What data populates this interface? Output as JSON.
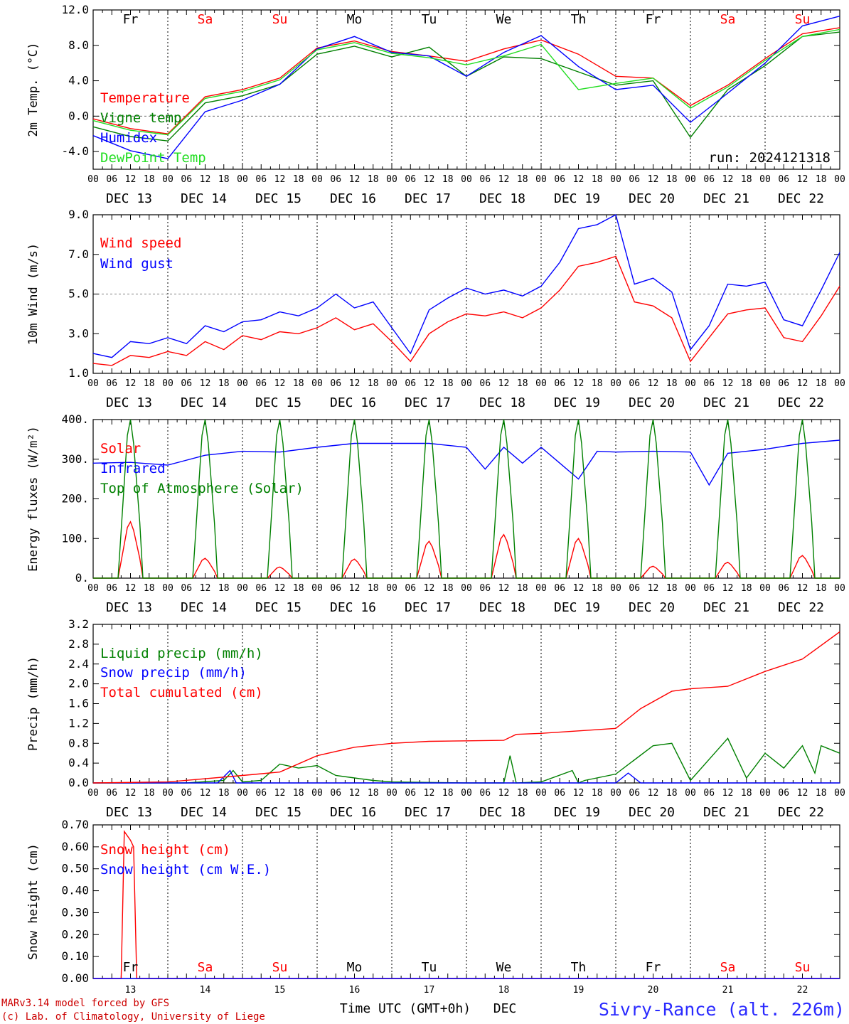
{
  "colors": {
    "red": "#ff0000",
    "green": "#008000",
    "blue": "#0000ff",
    "lightgreen": "#22dd22",
    "weekend": "#ff0000",
    "weekday": "#000000"
  },
  "day_labels": [
    "DEC 13",
    "DEC 14",
    "DEC 15",
    "DEC 16",
    "DEC 17",
    "DEC 18",
    "DEC 19",
    "DEC 20",
    "DEC 21",
    "DEC 22"
  ],
  "hour_labels": [
    "00",
    "06",
    "12",
    "18"
  ],
  "hour_end": "00",
  "weekdays": [
    {
      "label": "Fr",
      "weekend": false
    },
    {
      "label": "Sa",
      "weekend": true
    },
    {
      "label": "Su",
      "weekend": true
    },
    {
      "label": "Mo",
      "weekend": false
    },
    {
      "label": "Tu",
      "weekend": false
    },
    {
      "label": "We",
      "weekend": false
    },
    {
      "label": "Th",
      "weekend": false
    },
    {
      "label": "Fr",
      "weekend": false
    },
    {
      "label": "Sa",
      "weekend": true
    },
    {
      "label": "Su",
      "weekend": true
    }
  ],
  "bottom_day_numbers": [
    "13",
    "14",
    "15",
    "16",
    "17",
    "18",
    "19",
    "20",
    "21",
    "22"
  ],
  "footer": {
    "model": "MARv3.14 model forced by GFS",
    "lab": "(c) Lab. of Climatology, University of Liege",
    "xlabel": "Time UTC (GMT+0h)",
    "month": "DEC",
    "station": "Sivry-Rance (alt. 226m)"
  },
  "chart_data": [
    {
      "type": "line",
      "ylabel": "2m Temp. (°C)",
      "ylim": [
        -6,
        12
      ],
      "yticks": [
        "12.0",
        "8.0",
        "4.0",
        "0.0",
        "-4.0"
      ],
      "ytick_values": [
        12,
        8,
        4,
        0,
        -4
      ],
      "hline": [
        0
      ],
      "x_hours_range": [
        0,
        240
      ],
      "annotation": "run: 2024121318",
      "series": [
        {
          "name": "Temperature",
          "color": "red",
          "x": [
            0,
            12,
            24,
            36,
            48,
            60,
            72,
            84,
            96,
            108,
            120,
            132,
            144,
            156,
            168,
            180,
            192,
            204,
            216,
            228,
            240
          ],
          "y": [
            -0.3,
            -1.4,
            -2.0,
            2.2,
            3.0,
            4.3,
            7.7,
            8.5,
            7.3,
            6.8,
            6.2,
            7.6,
            8.6,
            7.0,
            4.5,
            4.3,
            1.2,
            3.5,
            6.5,
            9.3,
            10.0
          ]
        },
        {
          "name": "Vigne temp",
          "color": "green",
          "x": [
            0,
            12,
            24,
            36,
            48,
            60,
            72,
            84,
            96,
            108,
            120,
            132,
            144,
            156,
            168,
            180,
            192,
            204,
            216,
            228,
            240
          ],
          "y": [
            -1.2,
            -2.3,
            -2.8,
            1.5,
            2.3,
            3.6,
            7.0,
            7.9,
            6.7,
            7.8,
            4.5,
            6.7,
            6.5,
            5.0,
            3.5,
            4.0,
            -2.4,
            3.0,
            5.7,
            9.0,
            9.5
          ]
        },
        {
          "name": "Humidex",
          "color": "blue",
          "x": [
            0,
            12,
            24,
            36,
            48,
            60,
            72,
            84,
            96,
            108,
            120,
            132,
            144,
            156,
            168,
            180,
            192,
            204,
            216,
            228,
            240
          ],
          "y": [
            -2.2,
            -3.9,
            -4.8,
            0.5,
            1.8,
            3.6,
            7.6,
            9.0,
            7.2,
            6.8,
            4.5,
            7.2,
            9.1,
            5.6,
            3.0,
            3.5,
            -0.7,
            2.6,
            6.0,
            10.2,
            11.3
          ]
        },
        {
          "name": "DewPoint Temp",
          "color": "lightgreen",
          "x": [
            0,
            12,
            24,
            36,
            48,
            60,
            72,
            84,
            96,
            108,
            120,
            132,
            144,
            156,
            168,
            180,
            192,
            204,
            216,
            228,
            240
          ],
          "y": [
            -0.5,
            -1.6,
            -2.1,
            2.0,
            2.8,
            4.1,
            7.5,
            8.3,
            7.1,
            6.6,
            5.8,
            6.8,
            8.1,
            3.0,
            3.7,
            4.3,
            0.9,
            3.3,
            6.3,
            9.0,
            9.8
          ]
        }
      ]
    },
    {
      "type": "line",
      "ylabel": "10m Wind (m/s)",
      "ylim": [
        1,
        9
      ],
      "yticks": [
        "9.0",
        "7.0",
        "5.0",
        "3.0",
        "1.0"
      ],
      "ytick_values": [
        9,
        7,
        5,
        3,
        1
      ],
      "hline": [
        5
      ],
      "x_hours_range": [
        0,
        240
      ],
      "series": [
        {
          "name": "Wind speed",
          "color": "red",
          "x": [
            0,
            6,
            12,
            18,
            24,
            30,
            36,
            42,
            48,
            54,
            60,
            66,
            72,
            78,
            84,
            90,
            96,
            102,
            108,
            114,
            120,
            126,
            132,
            138,
            144,
            150,
            156,
            162,
            168,
            174,
            180,
            186,
            192,
            198,
            204,
            210,
            216,
            222,
            228,
            234,
            240
          ],
          "y": [
            1.5,
            1.4,
            1.9,
            1.8,
            2.1,
            1.9,
            2.6,
            2.2,
            2.9,
            2.7,
            3.1,
            3.0,
            3.3,
            3.8,
            3.2,
            3.5,
            2.6,
            1.6,
            3.0,
            3.6,
            4.0,
            3.9,
            4.1,
            3.8,
            4.3,
            5.2,
            6.4,
            6.6,
            6.9,
            4.6,
            4.4,
            3.8,
            1.6,
            2.8,
            4.0,
            4.2,
            4.3,
            2.8,
            2.6,
            3.9,
            5.4
          ]
        },
        {
          "name": "Wind gust",
          "color": "blue",
          "x": [
            0,
            6,
            12,
            18,
            24,
            30,
            36,
            42,
            48,
            54,
            60,
            66,
            72,
            78,
            84,
            90,
            96,
            102,
            108,
            114,
            120,
            126,
            132,
            138,
            144,
            150,
            156,
            162,
            168,
            174,
            180,
            186,
            192,
            198,
            204,
            210,
            216,
            222,
            228,
            234,
            240
          ],
          "y": [
            2.0,
            1.8,
            2.6,
            2.5,
            2.8,
            2.5,
            3.4,
            3.1,
            3.6,
            3.7,
            4.1,
            3.9,
            4.3,
            5.0,
            4.3,
            4.6,
            3.3,
            2.0,
            4.2,
            4.8,
            5.3,
            5.0,
            5.2,
            4.9,
            5.4,
            6.6,
            8.3,
            8.5,
            9.0,
            5.5,
            5.8,
            5.1,
            2.2,
            3.4,
            5.5,
            5.4,
            5.6,
            3.7,
            3.4,
            5.2,
            7.1
          ]
        }
      ]
    },
    {
      "type": "line",
      "ylabel": "Energy fluxes (W/m²)",
      "ylim": [
        0,
        400
      ],
      "yticks": [
        "400.",
        "300.",
        "200.",
        "100.",
        "0."
      ],
      "ytick_values": [
        400,
        300,
        200,
        100,
        0
      ],
      "x_hours_range": [
        0,
        240
      ],
      "series": [
        {
          "name": "Solar",
          "color": "red",
          "peaks": [
            142,
            50,
            28,
            48,
            93,
            110,
            100,
            30,
            40,
            57
          ]
        },
        {
          "name": "Infrared",
          "color": "blue",
          "x": [
            0,
            12,
            24,
            36,
            48,
            60,
            72,
            84,
            96,
            108,
            120,
            126,
            132,
            138,
            144,
            150,
            156,
            162,
            168,
            180,
            192,
            198,
            204,
            216,
            228,
            240
          ],
          "y": [
            290,
            292,
            285,
            310,
            320,
            318,
            330,
            340,
            340,
            340,
            330,
            275,
            330,
            290,
            330,
            290,
            250,
            320,
            318,
            320,
            318,
            235,
            315,
            325,
            340,
            348
          ]
        },
        {
          "name": "Top of Atmosphere (Solar)",
          "color": "green",
          "peaks": [
            400,
            400,
            400,
            400,
            400,
            400,
            400,
            400,
            400,
            400
          ]
        }
      ]
    },
    {
      "type": "line",
      "ylabel": "Precip (mm/h)",
      "ylim": [
        0,
        3.2
      ],
      "yticks": [
        "3.2",
        "2.8",
        "2.4",
        "2.0",
        "1.6",
        "1.2",
        "0.8",
        "0.4",
        "0.0"
      ],
      "ytick_values": [
        3.2,
        2.8,
        2.4,
        2.0,
        1.6,
        1.2,
        0.8,
        0.4,
        0.0
      ],
      "x_hours_range": [
        0,
        240
      ],
      "series": [
        {
          "name": "Liquid precip (mm/h)",
          "color": "green",
          "x": [
            0,
            30,
            42,
            45,
            48,
            54,
            60,
            66,
            72,
            78,
            84,
            90,
            96,
            108,
            120,
            132,
            134,
            136,
            144,
            154,
            156,
            158,
            168,
            180,
            186,
            192,
            204,
            210,
            216,
            222,
            228,
            232,
            234,
            240
          ],
          "y": [
            0,
            0,
            0.05,
            0.25,
            0.02,
            0.05,
            0.38,
            0.3,
            0.35,
            0.15,
            0.1,
            0.05,
            0.02,
            0.01,
            0,
            0,
            0.55,
            0,
            0.02,
            0.25,
            0,
            0.05,
            0.18,
            0.75,
            0.8,
            0.05,
            0.9,
            0.1,
            0.6,
            0.3,
            0.75,
            0.2,
            0.75,
            0.6
          ]
        },
        {
          "name": "Snow precip (mm/h)",
          "color": "blue",
          "x": [
            0,
            40,
            44,
            46,
            48,
            168,
            172,
            176,
            240
          ],
          "y": [
            0,
            0,
            0.25,
            0,
            0,
            0,
            0.2,
            0,
            0
          ]
        },
        {
          "name": "Total cumulated (cm)",
          "color": "red",
          "x": [
            0,
            24,
            48,
            60,
            72,
            84,
            96,
            108,
            120,
            132,
            136,
            144,
            156,
            168,
            176,
            186,
            192,
            204,
            216,
            228,
            240
          ],
          "y": [
            0,
            0.02,
            0.15,
            0.22,
            0.55,
            0.72,
            0.8,
            0.84,
            0.85,
            0.86,
            0.98,
            1.0,
            1.05,
            1.1,
            1.5,
            1.85,
            1.9,
            1.95,
            2.25,
            2.5,
            3.05
          ]
        }
      ]
    },
    {
      "type": "line",
      "ylabel": "Snow height (cm)",
      "ylim": [
        0,
        0.7
      ],
      "yticks": [
        "0.70",
        "0.60",
        "0.50",
        "0.40",
        "0.30",
        "0.20",
        "0.10",
        "0.00"
      ],
      "ytick_values": [
        0.7,
        0.6,
        0.5,
        0.4,
        0.3,
        0.2,
        0.1,
        0.0
      ],
      "x_hours_range": [
        0,
        240
      ],
      "series": [
        {
          "name": "Snow height (cm)",
          "color": "red",
          "x": [
            0,
            9,
            10,
            12,
            13,
            14,
            240
          ],
          "y": [
            0,
            0,
            0.67,
            0.63,
            0.6,
            0,
            0
          ]
        },
        {
          "name": "Snow height (cm W.E.)",
          "color": "blue",
          "x": [
            0,
            240
          ],
          "y": [
            0,
            0
          ]
        }
      ]
    }
  ]
}
